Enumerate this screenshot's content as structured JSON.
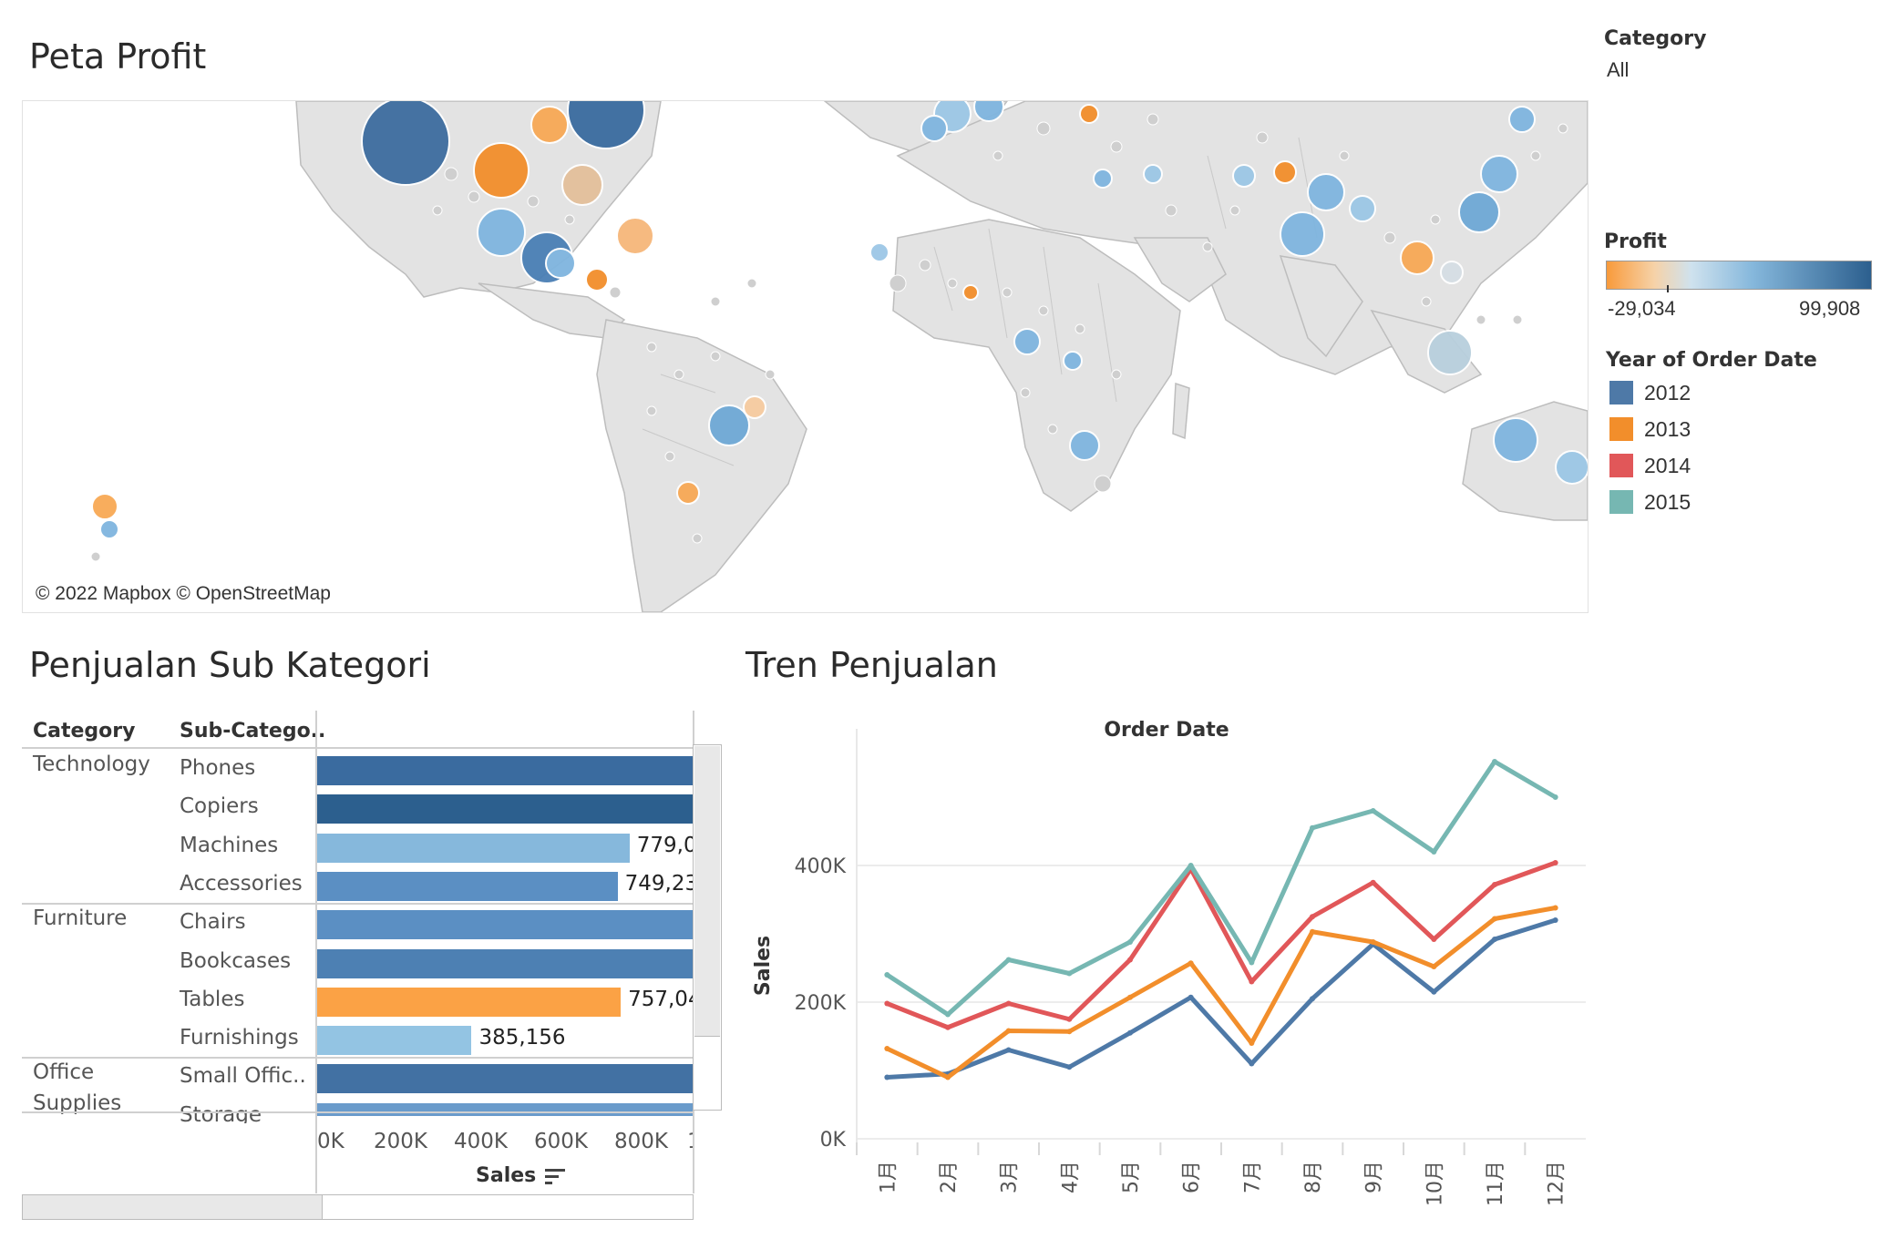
{
  "titles": {
    "map": "Peta Profit",
    "bar": "Penjualan Sub Kategori",
    "line": "Tren Penjualan"
  },
  "filter": {
    "label": "Category",
    "value": "All"
  },
  "profit_legend": {
    "title": "Profit",
    "min": "-29,034",
    "max": "99,908",
    "colors": {
      "low": "#f89a3b",
      "mid": "#cfe2ee",
      "high": "#2c5f8e"
    }
  },
  "year_legend": {
    "title": "Year of Order Date",
    "items": [
      {
        "label": "2012",
        "color": "#4e79a7"
      },
      {
        "label": "2013",
        "color": "#f28e2b"
      },
      {
        "label": "2014",
        "color": "#e15759"
      },
      {
        "label": "2015",
        "color": "#76b7b2"
      }
    ]
  },
  "map": {
    "credit": "© 2022 Mapbox © OpenStreetMap"
  },
  "bar_table": {
    "col_category": "Category",
    "col_subcategory": "Sub-Catego..",
    "xlabel": "Sales",
    "ticks": [
      "0K",
      "200K",
      "400K",
      "600K",
      "800K",
      "1"
    ],
    "groups": [
      {
        "category": [
          "Technology"
        ],
        "rows": [
          {
            "sub": "Phones",
            "value": 1706824,
            "label": "",
            "color": "#3a6b9f"
          },
          {
            "sub": "Copiers",
            "value": 1509436,
            "label": "",
            "color": "#2c5f8e"
          },
          {
            "sub": "Machines",
            "value": 779060,
            "label": "779,0",
            "color": "#86b8dc"
          },
          {
            "sub": "Accessories",
            "value": 749237,
            "label": "749,23",
            "color": "#5b8fc3"
          }
        ]
      },
      {
        "category": [
          "Furniture"
        ],
        "rows": [
          {
            "sub": "Chairs",
            "value": 1501682,
            "label": "",
            "color": "#5b8fc3"
          },
          {
            "sub": "Bookcases",
            "value": 1466572,
            "label": "",
            "color": "#4d80b3"
          },
          {
            "sub": "Tables",
            "value": 757042,
            "label": "757,04",
            "color": "#fba245"
          },
          {
            "sub": "Furnishings",
            "value": 385156,
            "label": "385,156",
            "color": "#93c4e3"
          }
        ]
      },
      {
        "category": [
          "Office",
          "Supplies"
        ],
        "rows": [
          {
            "sub": "Small Offic..",
            "value": 1300000,
            "label": "",
            "color": "#4271a3"
          },
          {
            "sub": "Storage",
            "value": 1127086,
            "label": "",
            "color": "#6a9bcb"
          }
        ]
      }
    ]
  },
  "chart_data": {
    "type": "line",
    "title": "Order Date",
    "xlabel": "",
    "ylabel": "Sales",
    "categories": [
      "1月",
      "2月",
      "3月",
      "4月",
      "5月",
      "6月",
      "7月",
      "8月",
      "9月",
      "10月",
      "11月",
      "12月"
    ],
    "ylim": [
      0,
      560000
    ],
    "yticks": [
      "0K",
      "200K",
      "400K"
    ],
    "series": [
      {
        "name": "2012",
        "color": "#4e79a7",
        "values": [
          90000,
          95000,
          130000,
          105000,
          155000,
          207000,
          110000,
          205000,
          285000,
          215000,
          292000,
          320000
        ]
      },
      {
        "name": "2013",
        "color": "#f28e2b",
        "values": [
          132000,
          90000,
          158000,
          157000,
          207000,
          257000,
          140000,
          303000,
          288000,
          252000,
          322000,
          338000
        ]
      },
      {
        "name": "2014",
        "color": "#e15759",
        "values": [
          198000,
          163000,
          198000,
          175000,
          262000,
          395000,
          230000,
          325000,
          375000,
          292000,
          372000,
          404000
        ]
      },
      {
        "name": "2015",
        "color": "#76b7b2",
        "values": [
          240000,
          182000,
          262000,
          242000,
          288000,
          400000,
          258000,
          455000,
          480000,
          420000,
          552000,
          500000
        ]
      }
    ]
  }
}
